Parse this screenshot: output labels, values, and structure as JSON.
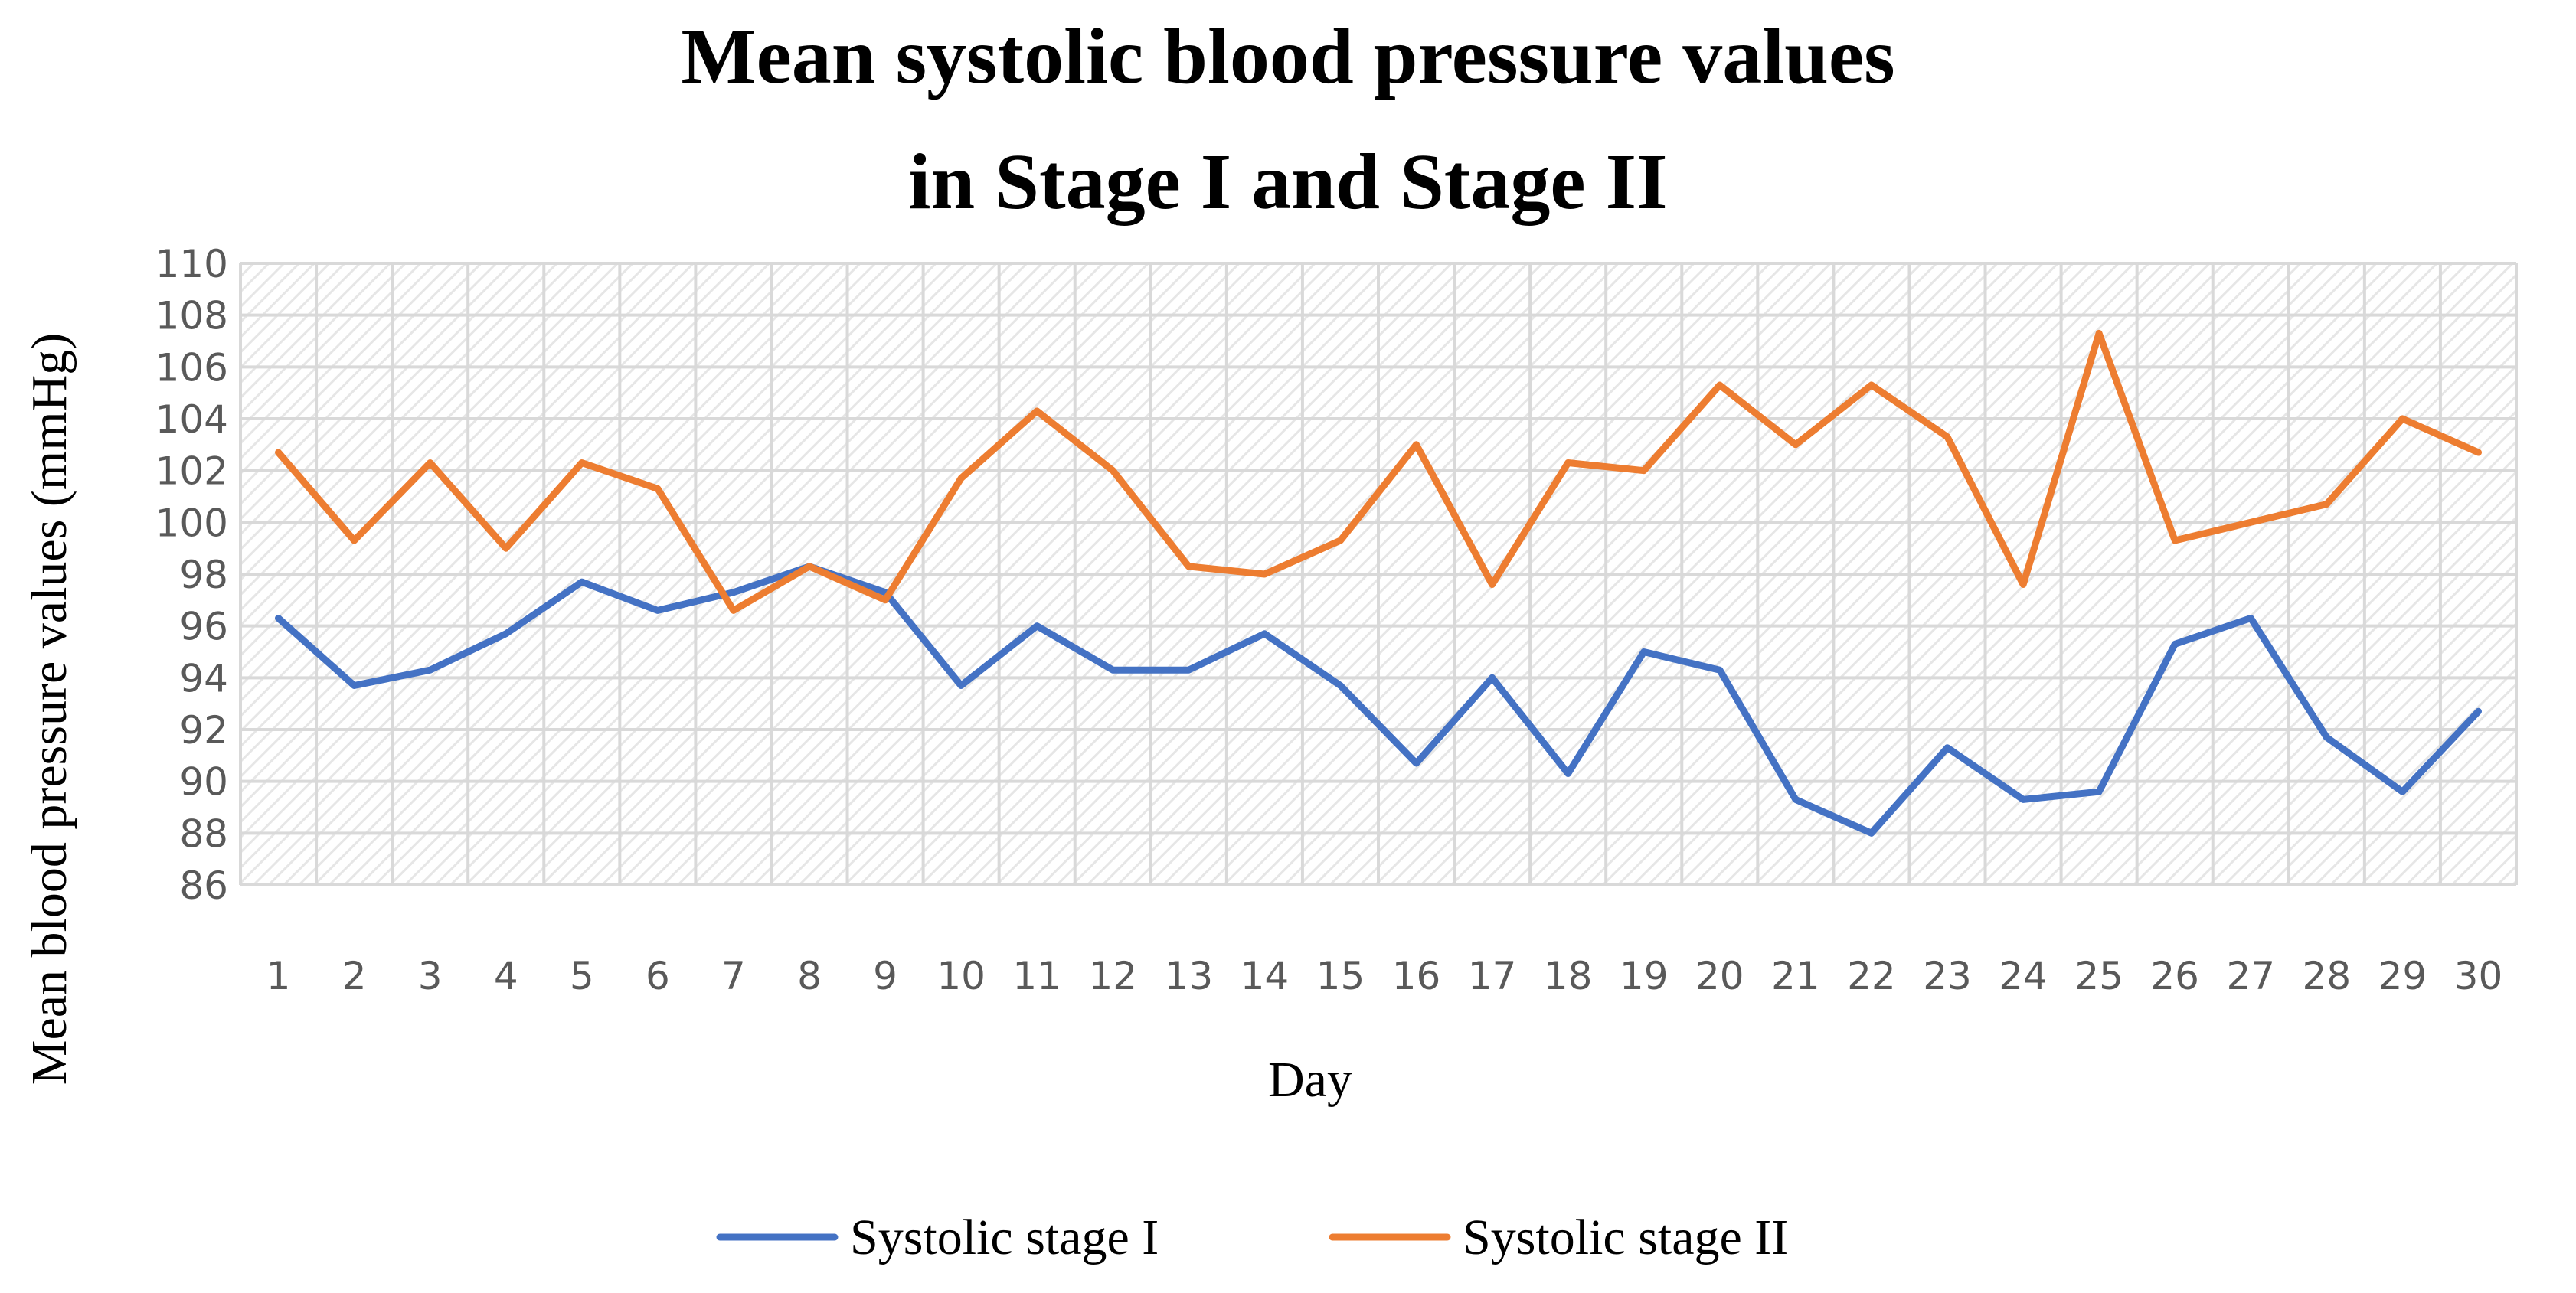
{
  "chart_data": {
    "type": "line",
    "title_lines": [
      "Mean systolic blood pressure values",
      "in Stage I and Stage II"
    ],
    "xlabel": "Day",
    "ylabel": "Mean blood pressure values (mmHg)",
    "ylim": [
      86,
      110
    ],
    "ytick_step": 2,
    "grid": true,
    "legend_position": "bottom",
    "x": [
      1,
      2,
      3,
      4,
      5,
      6,
      7,
      8,
      9,
      10,
      11,
      12,
      13,
      14,
      15,
      16,
      17,
      18,
      19,
      20,
      21,
      22,
      23,
      24,
      25,
      26,
      27,
      28,
      29,
      30
    ],
    "series": [
      {
        "name": "Systolic stage I",
        "color": "#4472c4",
        "values": [
          96.3,
          93.7,
          94.3,
          95.7,
          97.7,
          96.6,
          97.3,
          98.3,
          97.3,
          93.7,
          96.0,
          94.3,
          94.3,
          95.7,
          93.7,
          90.7,
          94.0,
          90.3,
          95.0,
          94.3,
          89.3,
          88.0,
          91.3,
          89.3,
          89.6,
          95.3,
          96.3,
          91.7,
          89.6,
          92.7
        ]
      },
      {
        "name": "Systolic stage II",
        "color": "#ed7d31",
        "values": [
          102.7,
          99.3,
          102.3,
          99.0,
          102.3,
          101.3,
          96.6,
          98.3,
          97.0,
          101.7,
          104.3,
          102.0,
          98.3,
          98.0,
          99.3,
          103.0,
          97.6,
          102.3,
          102.0,
          105.3,
          103.0,
          105.3,
          103.3,
          97.6,
          107.3,
          99.3,
          100.0,
          100.7,
          104.0,
          102.7
        ]
      }
    ]
  }
}
